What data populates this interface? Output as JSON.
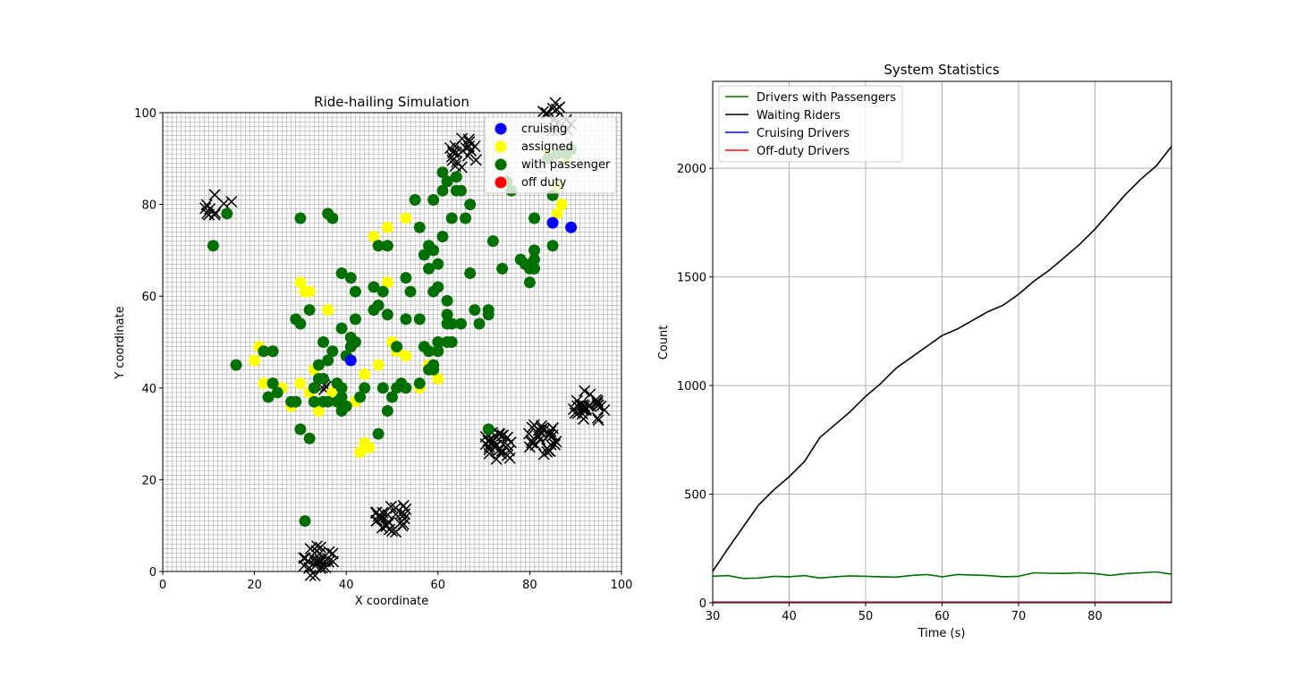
{
  "chart_data": [
    {
      "type": "scatter",
      "title": "Ride-hailing Simulation",
      "xlabel": "X coordinate",
      "ylabel": "Y coordinate",
      "xlim": [
        0,
        100
      ],
      "ylim": [
        0,
        100
      ],
      "xticks": [
        0,
        20,
        40,
        60,
        80,
        100
      ],
      "yticks": [
        0,
        20,
        40,
        60,
        80,
        100
      ],
      "grid": true,
      "grid_step": 1,
      "legend_position": "top-right",
      "colors": {
        "cruising": "#0000ff",
        "assigned": "#ffff00",
        "with_passenger": "#007000",
        "off_duty": "#ff0000",
        "rider": "#000000"
      },
      "legend": [
        {
          "key": "cruising",
          "label": "cruising"
        },
        {
          "key": "assigned",
          "label": "assigned"
        },
        {
          "key": "with_passenger",
          "label": "with passenger"
        },
        {
          "key": "off_duty",
          "label": "off duty"
        }
      ],
      "series": [
        {
          "name": "cruising",
          "points": [
            [
              41,
              46
            ],
            [
              85,
              76
            ],
            [
              89,
              75
            ]
          ]
        },
        {
          "name": "assigned",
          "points": [
            [
              21,
              49
            ],
            [
              20,
              46
            ],
            [
              22,
              41
            ],
            [
              26,
              40
            ],
            [
              28,
              36
            ],
            [
              30,
              41
            ],
            [
              32,
              39
            ],
            [
              33,
              44
            ],
            [
              34,
              35
            ],
            [
              31,
              61
            ],
            [
              30,
              63
            ],
            [
              32,
              61
            ],
            [
              36,
              57
            ],
            [
              37,
              39
            ],
            [
              39,
              40
            ],
            [
              40,
              36
            ],
            [
              42,
              37
            ],
            [
              43,
              26
            ],
            [
              44,
              28
            ],
            [
              45,
              27
            ],
            [
              44,
              43
            ],
            [
              46,
              73
            ],
            [
              49,
              75
            ],
            [
              51,
              48
            ],
            [
              53,
              77
            ],
            [
              53,
              47
            ],
            [
              49,
              63
            ],
            [
              47,
              45
            ],
            [
              50,
              50
            ],
            [
              56,
              40
            ],
            [
              58,
              45
            ],
            [
              60,
              42
            ],
            [
              84,
              91
            ],
            [
              85,
              82
            ],
            [
              86,
              84
            ],
            [
              86,
              78
            ],
            [
              88,
              90
            ],
            [
              87,
              80
            ]
          ]
        },
        {
          "name": "with_passenger",
          "points": [
            [
              11,
              71
            ],
            [
              14,
              78
            ],
            [
              16,
              45
            ],
            [
              22,
              48
            ],
            [
              23,
              38
            ],
            [
              24,
              41
            ],
            [
              24,
              48
            ],
            [
              25,
              39
            ],
            [
              28,
              37
            ],
            [
              29,
              37
            ],
            [
              29,
              55
            ],
            [
              30,
              54
            ],
            [
              30,
              31
            ],
            [
              30,
              77
            ],
            [
              32,
              57
            ],
            [
              32,
              29
            ],
            [
              31,
              11
            ],
            [
              33,
              37
            ],
            [
              33,
              40
            ],
            [
              34,
              45
            ],
            [
              34,
              42
            ],
            [
              35,
              42
            ],
            [
              35,
              50
            ],
            [
              35,
              37
            ],
            [
              36,
              37
            ],
            [
              36,
              78
            ],
            [
              36,
              46
            ],
            [
              37,
              77
            ],
            [
              37,
              48
            ],
            [
              38,
              41
            ],
            [
              38,
              37
            ],
            [
              39,
              65
            ],
            [
              39,
              40
            ],
            [
              39,
              38
            ],
            [
              39,
              53
            ],
            [
              39,
              35
            ],
            [
              40,
              47
            ],
            [
              40,
              36
            ],
            [
              41,
              64
            ],
            [
              41,
              51
            ],
            [
              41,
              49
            ],
            [
              42,
              50
            ],
            [
              42,
              55
            ],
            [
              42,
              61
            ],
            [
              43,
              38
            ],
            [
              44,
              40
            ],
            [
              46,
              57
            ],
            [
              46,
              62
            ],
            [
              47,
              30
            ],
            [
              47,
              58
            ],
            [
              47,
              71
            ],
            [
              48,
              61
            ],
            [
              48,
              40
            ],
            [
              49,
              35
            ],
            [
              49,
              71
            ],
            [
              49,
              56
            ],
            [
              50,
              38
            ],
            [
              51,
              40
            ],
            [
              51,
              49
            ],
            [
              52,
              41
            ],
            [
              53,
              40
            ],
            [
              53,
              55
            ],
            [
              53,
              64
            ],
            [
              54,
              61
            ],
            [
              55,
              81
            ],
            [
              56,
              55
            ],
            [
              56,
              41
            ],
            [
              56,
              75
            ],
            [
              57,
              69
            ],
            [
              57,
              49
            ],
            [
              58,
              44
            ],
            [
              58,
              66
            ],
            [
              58,
              48
            ],
            [
              58,
              71
            ],
            [
              59,
              61
            ],
            [
              59,
              44
            ],
            [
              59,
              70
            ],
            [
              59,
              45
            ],
            [
              59,
              81
            ],
            [
              60,
              67
            ],
            [
              60,
              62
            ],
            [
              60,
              48
            ],
            [
              60,
              50
            ],
            [
              61,
              73
            ],
            [
              61,
              87
            ],
            [
              61,
              83
            ],
            [
              62,
              59
            ],
            [
              62,
              56
            ],
            [
              62,
              54
            ],
            [
              62,
              85
            ],
            [
              62,
              50
            ],
            [
              63,
              77
            ],
            [
              63,
              54
            ],
            [
              63,
              50
            ],
            [
              64,
              86
            ],
            [
              64,
              83
            ],
            [
              65,
              83
            ],
            [
              65,
              54
            ],
            [
              66,
              77
            ],
            [
              67,
              80
            ],
            [
              67,
              65
            ],
            [
              68,
              57
            ],
            [
              69,
              54
            ],
            [
              71,
              57
            ],
            [
              71,
              56
            ],
            [
              71,
              31
            ],
            [
              72,
              72
            ],
            [
              74,
              66
            ],
            [
              75,
              85
            ],
            [
              76,
              83
            ],
            [
              78,
              68
            ],
            [
              79,
              67
            ],
            [
              80,
              66
            ],
            [
              80,
              63
            ],
            [
              81,
              66
            ],
            [
              81,
              77
            ],
            [
              81,
              68
            ],
            [
              81,
              70
            ],
            [
              84,
              90
            ],
            [
              85,
              71
            ],
            [
              85,
              82
            ],
            [
              86,
              91
            ],
            [
              88,
              91
            ],
            [
              89,
              92
            ]
          ]
        },
        {
          "name": "off_duty",
          "points": []
        }
      ],
      "rider_clusters": [
        {
          "center": [
            12,
            79
          ],
          "count": 10
        },
        {
          "center": [
            65,
            91
          ],
          "count": 20
        },
        {
          "center": [
            86,
            99
          ],
          "count": 14
        },
        {
          "center": [
            34,
            2
          ],
          "count": 28
        },
        {
          "center": [
            50,
            12
          ],
          "count": 28
        },
        {
          "center": [
            73,
            27
          ],
          "count": 28
        },
        {
          "center": [
            83,
            29
          ],
          "count": 28
        },
        {
          "center": [
            93,
            36
          ],
          "count": 28
        },
        {
          "center": [
            34,
            39
          ],
          "count": 3
        }
      ]
    },
    {
      "type": "line",
      "title": "System Statistics",
      "xlabel": "Time (s)",
      "ylabel": "Count",
      "xlim": [
        30,
        90
      ],
      "ylim": [
        0,
        2400
      ],
      "xticks": [
        30,
        40,
        50,
        60,
        70,
        80
      ],
      "yticks": [
        0,
        500,
        1000,
        1500,
        2000
      ],
      "grid": true,
      "legend_position": "top-left",
      "series": [
        {
          "name": "Drivers with Passengers",
          "color": "#007000",
          "x": [
            30,
            32,
            34,
            36,
            38,
            40,
            42,
            44,
            46,
            48,
            50,
            52,
            54,
            56,
            58,
            60,
            62,
            64,
            66,
            68,
            70,
            72,
            74,
            76,
            78,
            80,
            82,
            84,
            86,
            88,
            90
          ],
          "y": [
            122,
            125,
            112,
            114,
            122,
            120,
            125,
            114,
            120,
            124,
            122,
            120,
            118,
            126,
            130,
            120,
            130,
            128,
            125,
            120,
            122,
            138,
            136,
            135,
            138,
            134,
            126,
            134,
            138,
            142,
            132
          ]
        },
        {
          "name": "Waiting Riders",
          "color": "#000000",
          "x": [
            30,
            32,
            34,
            36,
            38,
            40,
            42,
            44,
            46,
            48,
            50,
            52,
            54,
            56,
            58,
            60,
            62,
            64,
            66,
            68,
            70,
            72,
            74,
            76,
            78,
            80,
            82,
            84,
            86,
            88,
            90
          ],
          "y": [
            145,
            250,
            350,
            450,
            520,
            580,
            650,
            760,
            820,
            880,
            950,
            1010,
            1080,
            1130,
            1180,
            1230,
            1260,
            1300,
            1340,
            1370,
            1420,
            1480,
            1530,
            1590,
            1650,
            1720,
            1800,
            1880,
            1950,
            2010,
            2100
          ]
        },
        {
          "name": "Cruising Drivers",
          "color": "#0000ff",
          "x": [
            30,
            45,
            60,
            75,
            90
          ],
          "y": [
            3,
            3,
            3,
            3,
            3
          ]
        },
        {
          "name": "Off-duty Drivers",
          "color": "#ff0000",
          "x": [
            30,
            45,
            60,
            75,
            90
          ],
          "y": [
            2,
            2,
            2,
            2,
            2
          ]
        }
      ]
    }
  ]
}
